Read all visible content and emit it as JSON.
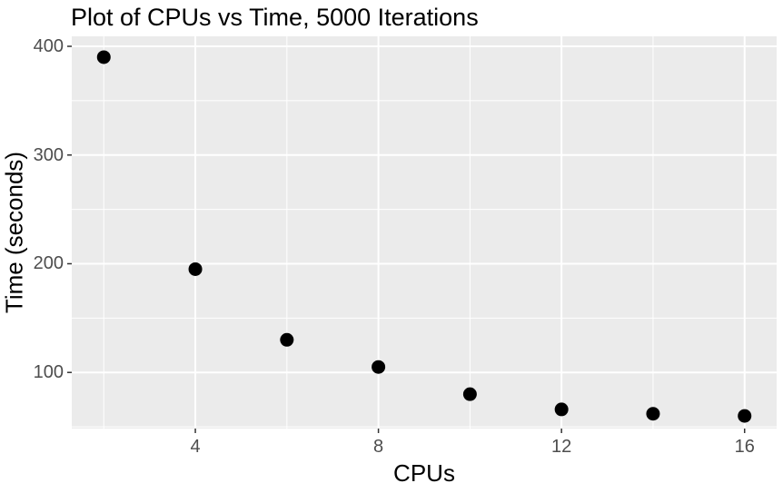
{
  "chart_data": {
    "type": "scatter",
    "title": "Plot of CPUs vs Time, 5000 Iterations",
    "xlabel": "CPUs",
    "ylabel": "Time (seconds)",
    "x": [
      2,
      4,
      6,
      8,
      10,
      12,
      14,
      16
    ],
    "y": [
      390,
      195,
      130,
      105,
      80,
      66,
      62,
      60
    ],
    "xlim": [
      1.3,
      16.7
    ],
    "ylim": [
      48.4,
      409.2
    ],
    "x_major_ticks": [
      4,
      8,
      12,
      16
    ],
    "x_minor_ticks": [
      2,
      6,
      10,
      14
    ],
    "y_major_ticks": [
      100,
      200,
      300,
      400
    ],
    "y_minor_ticks": [
      50,
      150,
      250,
      350
    ],
    "grid": true,
    "legend_position": "none",
    "point_radius": 7.5,
    "colors": {
      "panel_background": "#EBEBEB",
      "gridline": "#FFFFFF",
      "point": "#000000",
      "tick_text": "#4D4D4D",
      "tick_mark": "#333333",
      "title_text": "#000000",
      "figure_background": "#FFFFFF"
    }
  }
}
